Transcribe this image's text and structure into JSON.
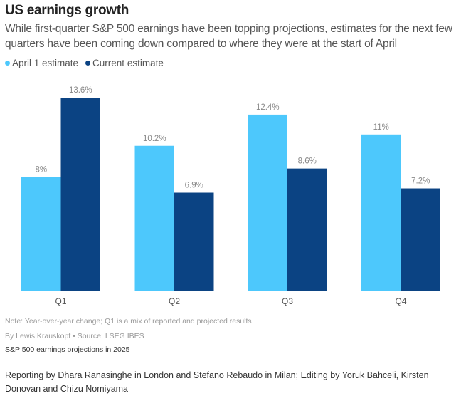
{
  "title": "US earnings growth",
  "subtitle": "While first-quarter S&P 500 earnings have been topping projections, estimates for the next few quarters have been coming down compared to where they were at the start of April",
  "chart_data": {
    "type": "bar",
    "categories": [
      "Q1",
      "Q2",
      "Q3",
      "Q4"
    ],
    "series": [
      {
        "name": "April 1 estimate",
        "values": [
          8,
          10.2,
          12.4,
          11
        ],
        "labels": [
          "8%",
          "10.2%",
          "12.4%",
          "11%"
        ],
        "color": "#4dc8fc"
      },
      {
        "name": "Current estimate",
        "values": [
          13.6,
          6.9,
          8.6,
          7.2
        ],
        "labels": [
          "13.6%",
          "6.9%",
          "8.6%",
          "7.2%"
        ],
        "color": "#0b4383"
      }
    ],
    "ylim": [
      0,
      13.6
    ],
    "grid": false,
    "legend": "top-left"
  },
  "note": "Note: Year-over-year change; Q1 is a mix of reported and projected results",
  "byline": "By Lewis Krauskopf • Source: LSEG IBES",
  "caption": "S&P 500 earnings projections in 2025",
  "credits": "Reporting by Dhara Ranasinghe in London and Stefano Rebaudo in Milan; Editing by Yoruk Bahceli, Kirsten Donovan and Chizu Nomiyama"
}
